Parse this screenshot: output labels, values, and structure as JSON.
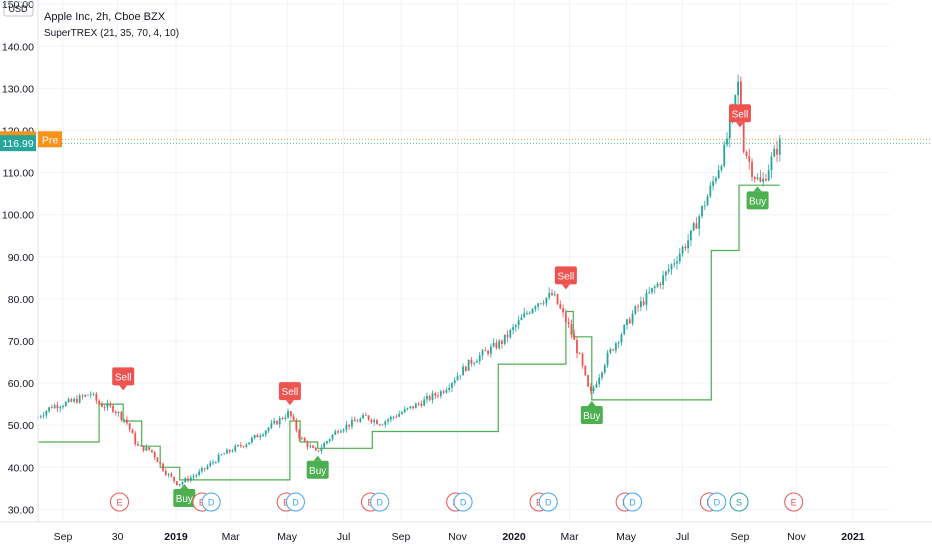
{
  "header": {
    "symbol_line": "Apple Inc, 2h, Cboe BZX",
    "indicator_line": "SuperTREX (21, 35, 70, 4, 10)"
  },
  "currency_label": "USD",
  "price_badges": [
    {
      "value": "117.91",
      "tag": "Pre",
      "color": "#f7931a",
      "y": 117.91
    },
    {
      "value": "116.99",
      "tag": "",
      "color": "#26a69a",
      "y": 116.99
    }
  ],
  "colors": {
    "up": "#26a69a",
    "down": "#ef5350",
    "trend_line": "#4caf50",
    "buy": "#4caf50",
    "sell": "#ef5350",
    "grid": "#f0f3fa",
    "axis_text": "#131722",
    "earnings": "#ef5350",
    "dividend": "#42a5f5",
    "split": "#26a69a"
  },
  "chart_data": {
    "type": "candlestick",
    "title": "Apple Inc, 2h, Cboe BZX",
    "ylabel": "USD",
    "ylim": [
      27,
      151
    ],
    "grid": true,
    "y_ticks": [
      "150.00",
      "140.00",
      "130.00",
      "120.00",
      "110.00",
      "100.00",
      "90.00",
      "80.00",
      "70.00",
      "60.00",
      "50.00",
      "40.00",
      "30.00"
    ],
    "y_tick_values": [
      150,
      140,
      130,
      120,
      110,
      100,
      90,
      80,
      70,
      60,
      50,
      40,
      30
    ],
    "x_ticks": [
      "Sep",
      "30",
      "2019",
      "Mar",
      "May",
      "Jul",
      "Sep",
      "Nov",
      "2020",
      "Mar",
      "May",
      "Jul",
      "Sep",
      "Nov",
      "2021"
    ],
    "x_tick_dates": [
      "2018-09-01",
      "2018-10-30",
      "2019-01-01",
      "2019-03-01",
      "2019-05-01",
      "2019-07-01",
      "2019-09-01",
      "2019-11-01",
      "2020-01-01",
      "2020-03-01",
      "2020-05-01",
      "2020-07-01",
      "2020-09-01",
      "2020-11-01",
      "2021-01-01"
    ],
    "x_range": [
      "2018-08-05",
      "2021-02-10"
    ],
    "price_path": [
      [
        "2018-08-05",
        52
      ],
      [
        "2018-08-20",
        54.5
      ],
      [
        "2018-09-10",
        55.5
      ],
      [
        "2018-10-01",
        57.5
      ],
      [
        "2018-10-10",
        55
      ],
      [
        "2018-10-25",
        54
      ],
      [
        "2018-11-08",
        51
      ],
      [
        "2018-11-20",
        45
      ],
      [
        "2018-12-05",
        44
      ],
      [
        "2018-12-20",
        39
      ],
      [
        "2019-01-03",
        36
      ],
      [
        "2019-01-25",
        38.5
      ],
      [
        "2019-02-20",
        43
      ],
      [
        "2019-03-20",
        46
      ],
      [
        "2019-04-15",
        50
      ],
      [
        "2019-05-03",
        53
      ],
      [
        "2019-05-15",
        47
      ],
      [
        "2019-06-01",
        43.5
      ],
      [
        "2019-06-25",
        49
      ],
      [
        "2019-07-25",
        52
      ],
      [
        "2019-08-10",
        50.5
      ],
      [
        "2019-09-15",
        54.5
      ],
      [
        "2019-10-15",
        58
      ],
      [
        "2019-11-15",
        65
      ],
      [
        "2019-12-20",
        70
      ],
      [
        "2020-01-24",
        79
      ],
      [
        "2020-02-12",
        81
      ],
      [
        "2020-03-01",
        73
      ],
      [
        "2020-03-12",
        66
      ],
      [
        "2020-03-23",
        57
      ],
      [
        "2020-04-10",
        66
      ],
      [
        "2020-05-10",
        77
      ],
      [
        "2020-06-10",
        85
      ],
      [
        "2020-07-10",
        95
      ],
      [
        "2020-07-31",
        106
      ],
      [
        "2020-08-15",
        115
      ],
      [
        "2020-08-31",
        132
      ],
      [
        "2020-09-04",
        117
      ],
      [
        "2020-09-15",
        110
      ],
      [
        "2020-09-24",
        107
      ],
      [
        "2020-10-05",
        113
      ],
      [
        "2020-10-14",
        117
      ]
    ],
    "supertrend_steps": [
      [
        "2018-08-05",
        46
      ],
      [
        "2018-10-10",
        46
      ],
      [
        "2018-10-10",
        55
      ],
      [
        "2018-11-05",
        55
      ],
      [
        "2018-11-05",
        51
      ],
      [
        "2018-11-25",
        51
      ],
      [
        "2018-11-25",
        45
      ],
      [
        "2018-12-15",
        45
      ],
      [
        "2018-12-15",
        40
      ],
      [
        "2019-01-05",
        40
      ],
      [
        "2019-01-05",
        37
      ],
      [
        "2019-05-04",
        37
      ],
      [
        "2019-05-04",
        51
      ],
      [
        "2019-05-15",
        51
      ],
      [
        "2019-05-15",
        46
      ],
      [
        "2019-06-03",
        46
      ],
      [
        "2019-06-03",
        44.5
      ],
      [
        "2019-08-01",
        44.5
      ],
      [
        "2019-08-01",
        48.5
      ],
      [
        "2019-12-15",
        48.5
      ],
      [
        "2019-12-15",
        64.5
      ],
      [
        "2020-02-26",
        64.5
      ],
      [
        "2020-02-26",
        77
      ],
      [
        "2020-03-05",
        77
      ],
      [
        "2020-03-05",
        71
      ],
      [
        "2020-03-25",
        71
      ],
      [
        "2020-03-25",
        56
      ],
      [
        "2020-08-01",
        56
      ],
      [
        "2020-08-01",
        91.5
      ],
      [
        "2020-08-31",
        91.5
      ],
      [
        "2020-08-31",
        107
      ],
      [
        "2020-10-14",
        107
      ]
    ],
    "signals": [
      {
        "label": "Sell",
        "type": "sell",
        "date": "2018-11-05",
        "price": 58.5
      },
      {
        "label": "Buy",
        "type": "buy",
        "date": "2019-01-10",
        "price": 35.8
      },
      {
        "label": "Sell",
        "type": "sell",
        "date": "2019-05-04",
        "price": 55
      },
      {
        "label": "Buy",
        "type": "buy",
        "date": "2019-06-03",
        "price": 42.5
      },
      {
        "label": "Sell",
        "type": "sell",
        "date": "2020-02-26",
        "price": 82.5
      },
      {
        "label": "Buy",
        "type": "buy",
        "date": "2020-03-25",
        "price": 55.5
      },
      {
        "label": "Sell",
        "type": "sell",
        "date": "2020-09-01",
        "price": 121
      },
      {
        "label": "Buy",
        "type": "buy",
        "date": "2020-09-20",
        "price": 106.5
      }
    ],
    "events": [
      {
        "label": "E",
        "type": "earnings",
        "date": "2018-11-01"
      },
      {
        "label": "E",
        "type": "earnings",
        "date": "2019-01-29"
      },
      {
        "label": "D",
        "type": "dividend",
        "date": "2019-02-08"
      },
      {
        "label": "E",
        "type": "earnings",
        "date": "2019-04-30"
      },
      {
        "label": "D",
        "type": "dividend",
        "date": "2019-05-10"
      },
      {
        "label": "E",
        "type": "earnings",
        "date": "2019-07-30"
      },
      {
        "label": "D",
        "type": "dividend",
        "date": "2019-08-09"
      },
      {
        "label": "E",
        "type": "earnings",
        "date": "2019-10-30"
      },
      {
        "label": "D",
        "type": "dividend",
        "date": "2019-11-07"
      },
      {
        "label": "E",
        "type": "earnings",
        "date": "2020-01-28"
      },
      {
        "label": "D",
        "type": "dividend",
        "date": "2020-02-07"
      },
      {
        "label": "E",
        "type": "earnings",
        "date": "2020-04-30"
      },
      {
        "label": "D",
        "type": "dividend",
        "date": "2020-05-08"
      },
      {
        "label": "E",
        "type": "earnings",
        "date": "2020-07-30"
      },
      {
        "label": "D",
        "type": "dividend",
        "date": "2020-08-07"
      },
      {
        "label": "S",
        "type": "split",
        "date": "2020-08-31"
      },
      {
        "label": "E",
        "type": "earnings",
        "date": "2020-10-29"
      }
    ]
  }
}
